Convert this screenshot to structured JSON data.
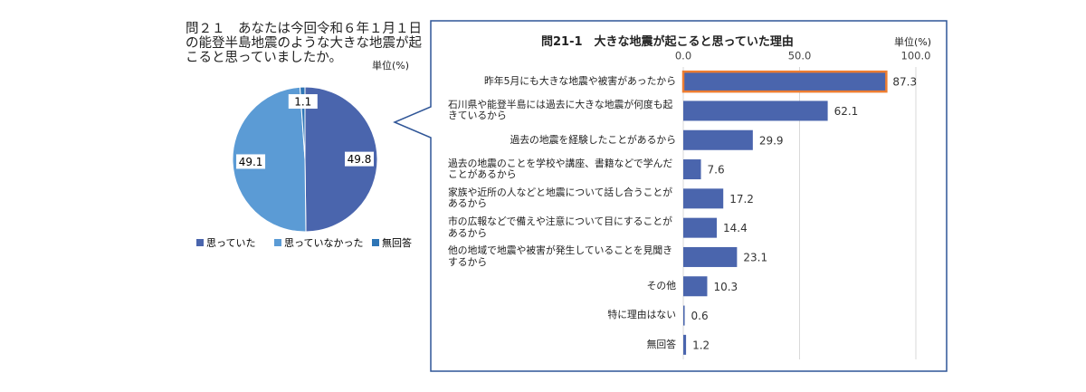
{
  "chart_data": [
    {
      "type": "pie",
      "title": "問２１　あなたは今回令和６年１月１日の能登半島地震のような大きな地震が起こると思っていましたか。",
      "unit": "単位(%)",
      "categories": [
        "思っていた",
        "思っていなかった",
        "無回答"
      ],
      "values": [
        49.8,
        49.1,
        1.1
      ],
      "colors": [
        "#4a65ad",
        "#5b9bd5",
        "#2e75b6"
      ],
      "legend": "bottom"
    },
    {
      "type": "bar",
      "orientation": "horizontal",
      "title": "問21-1　大きな地震が起こると思っていた理由",
      "unit": "単位(%)",
      "categories": [
        "昨年5月にも大きな地震や被害があったから",
        "石川県や能登半島には過去に大きな地震が何度も起きているから",
        "過去の地震を経験したことがあるから",
        "過去の地震のことを学校や講座、書籍などで学んだことがあるから",
        "家族や近所の人などと地震について話し合うことがあるから",
        "市の広報などで備えや注意について目にすることがあるから",
        "他の地域で地震や被害が発生していることを見聞きするから",
        "その他",
        "特に理由はない",
        "無回答"
      ],
      "values": [
        87.3,
        62.1,
        29.9,
        7.6,
        17.2,
        14.4,
        23.1,
        10.3,
        0.6,
        1.2
      ],
      "color": "#4a65ad",
      "highlight_index": 0,
      "highlight_color": "#ed7d31",
      "xlim": [
        0,
        100
      ],
      "xticks": [
        {
          "value": 0,
          "label": "0.0"
        },
        {
          "value": 50,
          "label": "50.0"
        },
        {
          "value": 100,
          "label": "100.0"
        }
      ],
      "grid": true
    }
  ]
}
